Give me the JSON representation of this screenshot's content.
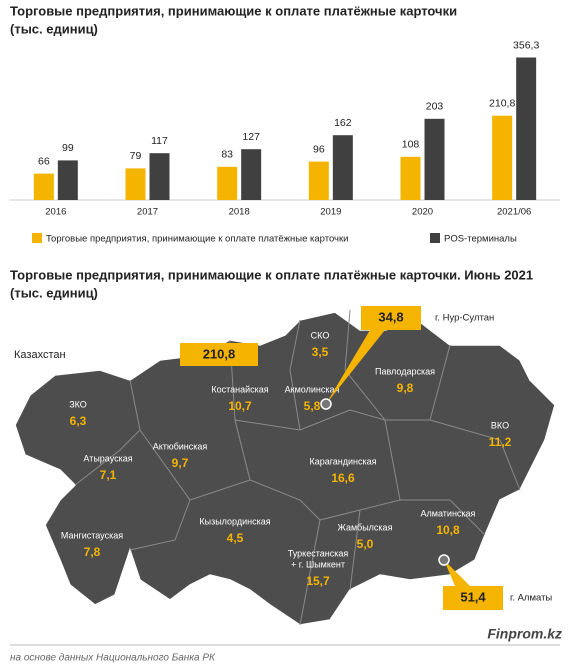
{
  "chart_data": {
    "type": "bar",
    "title": "Торговые предприятия, принимающие к оплате платёжные карточки",
    "subtitle": "(тыс. единиц)",
    "categories": [
      "2016",
      "2017",
      "2018",
      "2019",
      "2020",
      "2021/06"
    ],
    "series": [
      {
        "name": "Торговые предприятия, принимающие к оплате платёжные карточки",
        "color": "#f5b400",
        "values": [
          66,
          79,
          83,
          96,
          108,
          210.8
        ],
        "value_labels": [
          "66",
          "79",
          "83",
          "96",
          "108",
          "210,8"
        ]
      },
      {
        "name": "POS-терминалы",
        "color": "#404040",
        "values": [
          99,
          117,
          127,
          162,
          203,
          356.3
        ],
        "value_labels": [
          "99",
          "117",
          "127",
          "162",
          "203",
          "356,3"
        ]
      }
    ],
    "ylim": [
      0,
      400
    ]
  },
  "map": {
    "title": "Торговые предприятия, принимающие к оплате платёжные карточки. Июнь 2021",
    "subtitle": "(тыс. единиц)",
    "total": {
      "name": "Казахстан",
      "value": 210.8,
      "value_label": "210,8"
    },
    "cities": [
      {
        "name": "г. Нур-Султан",
        "value": 34.8,
        "value_label": "34,8"
      },
      {
        "name": "г. Алматы",
        "value": 51.4,
        "value_label": "51,4"
      }
    ],
    "regions": [
      {
        "lines": [
          "СКО"
        ],
        "value": 3.5,
        "value_label": "3,5"
      },
      {
        "lines": [
          "Павлодарская"
        ],
        "value": 9.8,
        "value_label": "9,8"
      },
      {
        "lines": [
          "Костанайская"
        ],
        "value": 10.7,
        "value_label": "10,7"
      },
      {
        "lines": [
          "Акмолинская"
        ],
        "value": 5.8,
        "value_label": "5,8"
      },
      {
        "lines": [
          "ЗКО"
        ],
        "value": 6.3,
        "value_label": "6,3"
      },
      {
        "lines": [
          "ВКО"
        ],
        "value": 11.2,
        "value_label": "11,2"
      },
      {
        "lines": [
          "Актюбинская"
        ],
        "value": 9.7,
        "value_label": "9,7"
      },
      {
        "lines": [
          "Атырауская"
        ],
        "value": 7.1,
        "value_label": "7,1"
      },
      {
        "lines": [
          "Карагандинская"
        ],
        "value": 16.6,
        "value_label": "16,6"
      },
      {
        "lines": [
          "Мангистауская"
        ],
        "value": 7.8,
        "value_label": "7,8"
      },
      {
        "lines": [
          "Кызылординская"
        ],
        "value": 4.5,
        "value_label": "4,5"
      },
      {
        "lines": [
          "Жамбылская"
        ],
        "value": 5.0,
        "value_label": "5,0"
      },
      {
        "lines": [
          "Алматинская"
        ],
        "value": 10.8,
        "value_label": "10,8"
      },
      {
        "lines": [
          "Туркестанская",
          "+ г. Шымкент"
        ],
        "value": 15.7,
        "value_label": "15,7"
      }
    ]
  },
  "footer": {
    "source": "на основе данных Национального Банка РК",
    "brand": "Finprom.kz"
  }
}
